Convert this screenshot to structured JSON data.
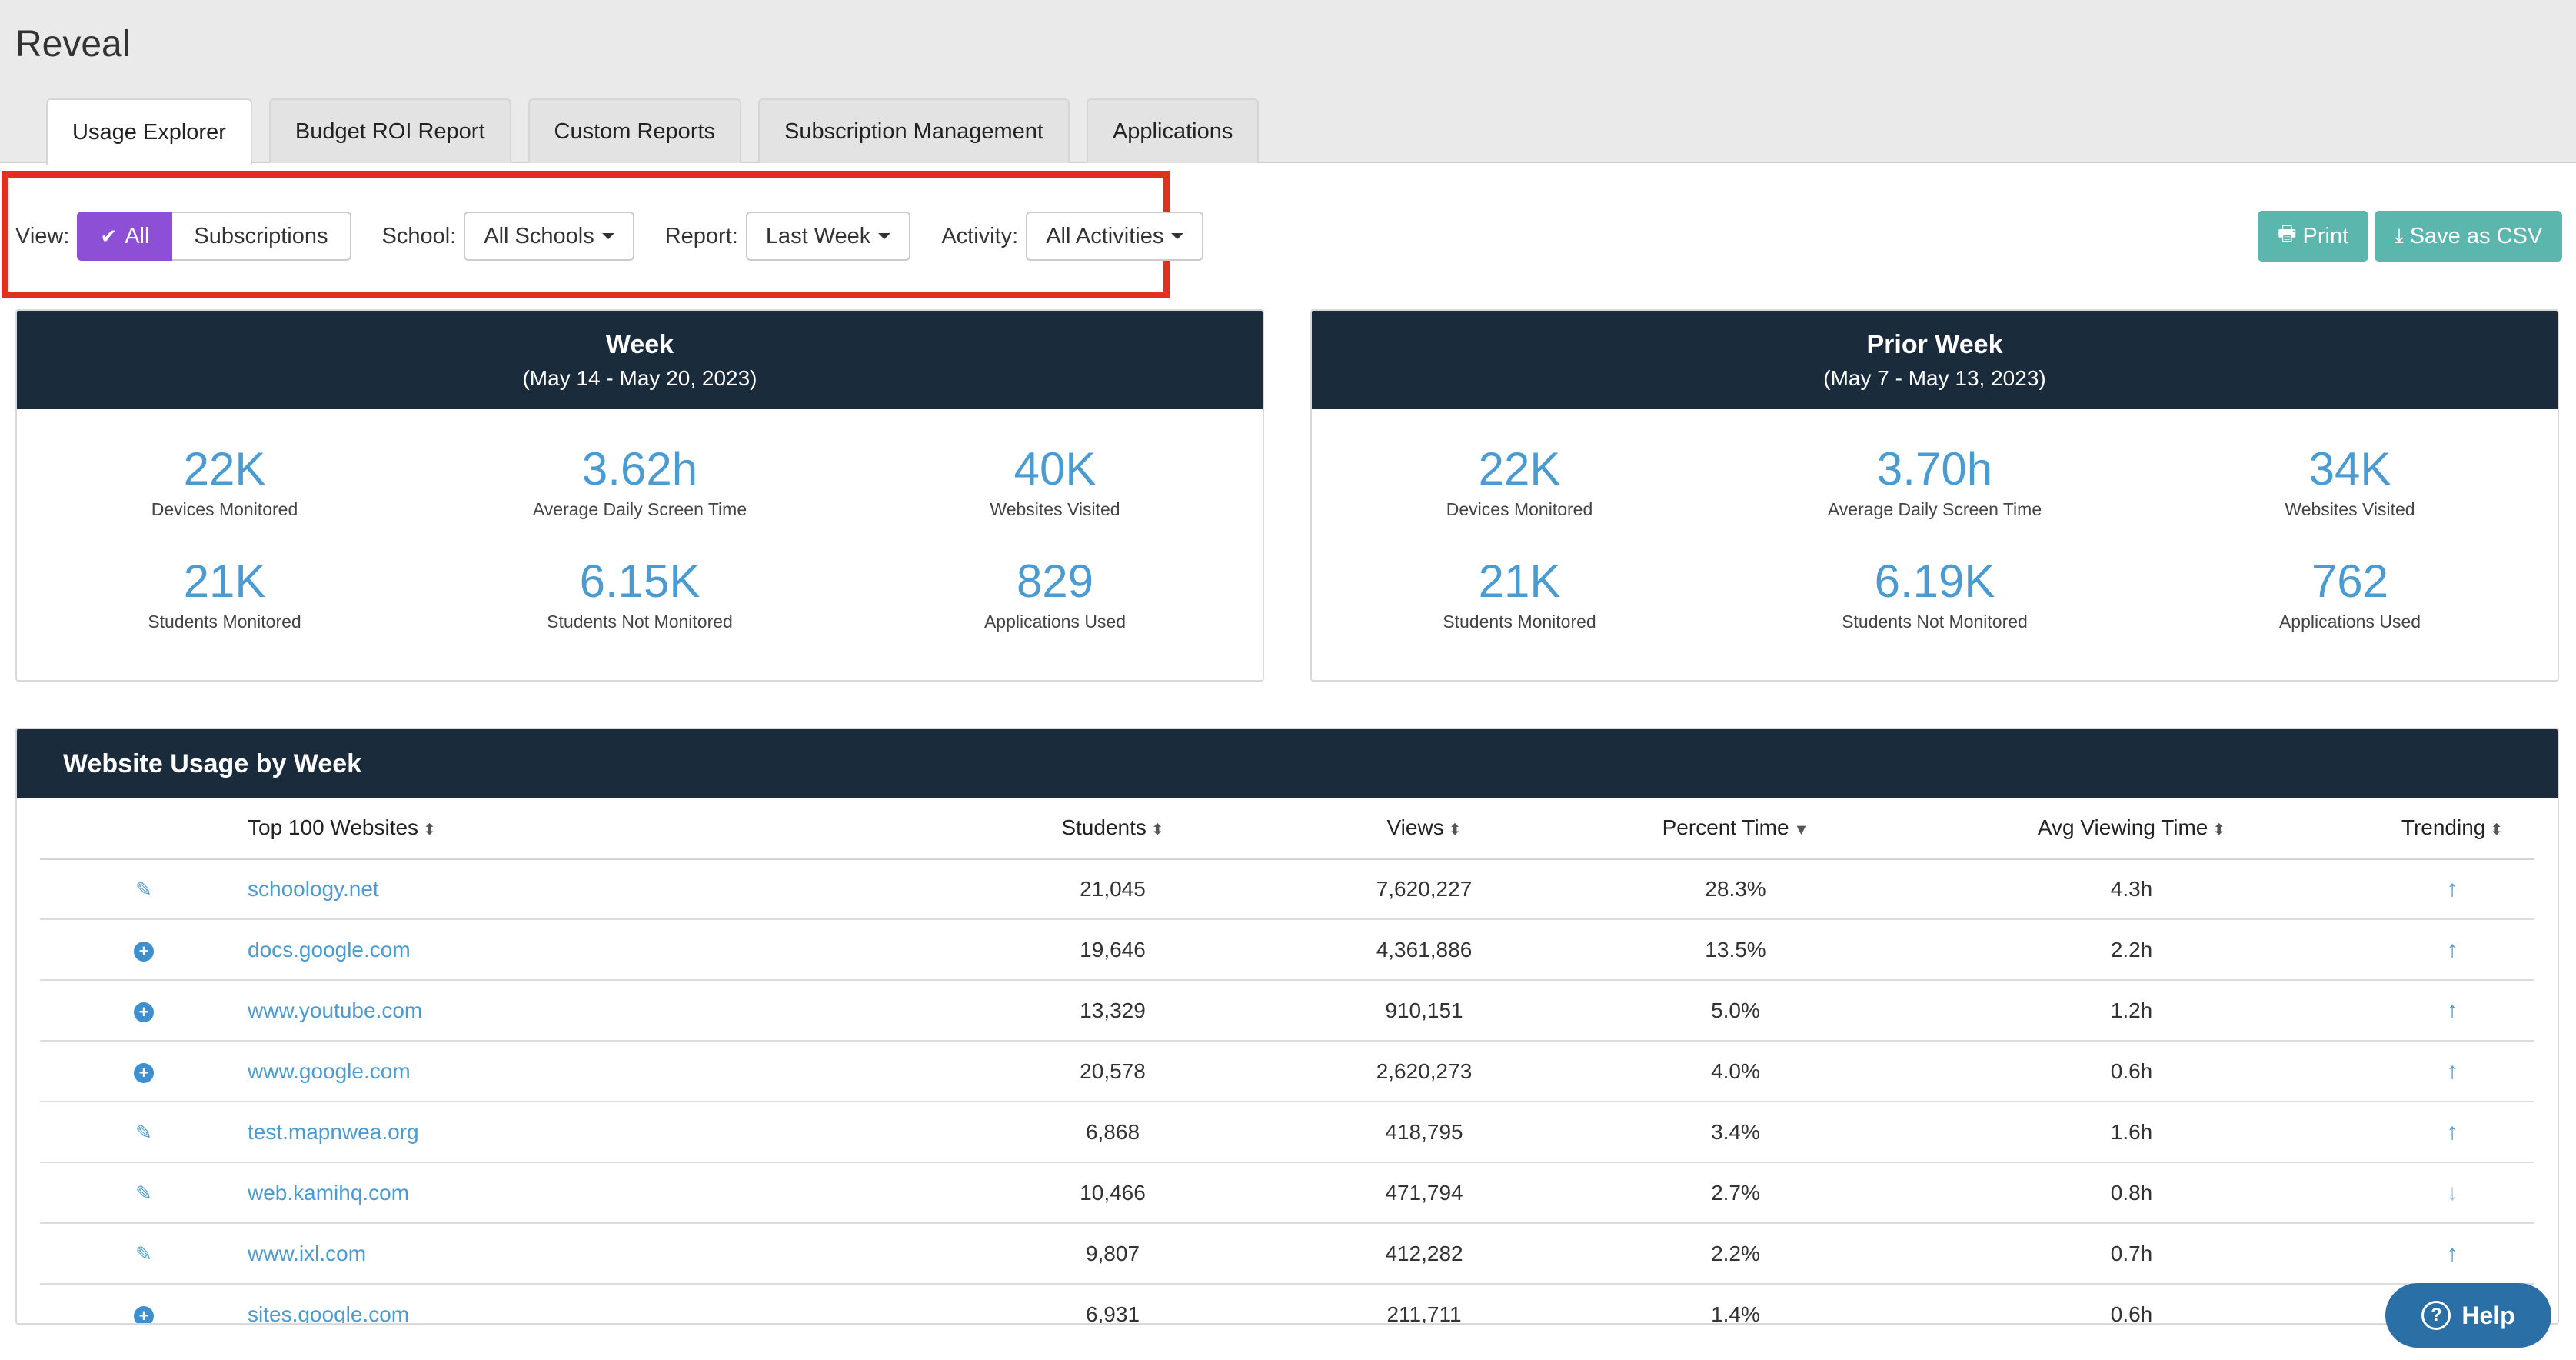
{
  "app": {
    "title": "Reveal"
  },
  "tabs": [
    {
      "label": "Usage Explorer",
      "active": true
    },
    {
      "label": "Budget ROI Report",
      "active": false
    },
    {
      "label": "Custom Reports",
      "active": false
    },
    {
      "label": "Subscription Management",
      "active": false
    },
    {
      "label": "Applications",
      "active": false
    }
  ],
  "filters": {
    "view_label": "View:",
    "view_options": [
      "All",
      "Subscriptions"
    ],
    "view_selected": "All",
    "school_label": "School:",
    "school_value": "All Schools",
    "report_label": "Report:",
    "report_value": "Last Week",
    "activity_label": "Activity:",
    "activity_value": "All Activities"
  },
  "actions": {
    "print": "Print",
    "csv": "Save as CSV"
  },
  "week": {
    "title": "Week",
    "range": "(May 14 - May 20, 2023)",
    "stats": [
      {
        "value": "22K",
        "label": "Devices Monitored"
      },
      {
        "value": "3.62h",
        "label": "Average Daily Screen Time"
      },
      {
        "value": "40K",
        "label": "Websites Visited"
      },
      {
        "value": "21K",
        "label": "Students Monitored"
      },
      {
        "value": "6.15K",
        "label": "Students Not Monitored"
      },
      {
        "value": "829",
        "label": "Applications Used"
      }
    ]
  },
  "prior": {
    "title": "Prior Week",
    "range": "(May 7 - May 13, 2023)",
    "stats": [
      {
        "value": "22K",
        "label": "Devices Monitored"
      },
      {
        "value": "3.70h",
        "label": "Average Daily Screen Time"
      },
      {
        "value": "34K",
        "label": "Websites Visited"
      },
      {
        "value": "21K",
        "label": "Students Monitored"
      },
      {
        "value": "6.19K",
        "label": "Students Not Monitored"
      },
      {
        "value": "762",
        "label": "Applications Used"
      }
    ]
  },
  "usage": {
    "title": "Website Usage by Week",
    "columns": [
      "Top 100 Websites",
      "Students",
      "Views",
      "Percent Time",
      "Avg Viewing Time",
      "Trending"
    ],
    "rows": [
      {
        "icon": "edit-icon",
        "site": "schoology.net",
        "students": "21,045",
        "views": "7,620,227",
        "pct": "28.3%",
        "avg": "4.3h",
        "trend": "up"
      },
      {
        "icon": "plus-circle-icon",
        "site": "docs.google.com",
        "students": "19,646",
        "views": "4,361,886",
        "pct": "13.5%",
        "avg": "2.2h",
        "trend": "up"
      },
      {
        "icon": "plus-circle-icon",
        "site": "www.youtube.com",
        "students": "13,329",
        "views": "910,151",
        "pct": "5.0%",
        "avg": "1.2h",
        "trend": "up"
      },
      {
        "icon": "plus-circle-icon",
        "site": "www.google.com",
        "students": "20,578",
        "views": "2,620,273",
        "pct": "4.0%",
        "avg": "0.6h",
        "trend": "up"
      },
      {
        "icon": "edit-icon",
        "site": "test.mapnwea.org",
        "students": "6,868",
        "views": "418,795",
        "pct": "3.4%",
        "avg": "1.6h",
        "trend": "up"
      },
      {
        "icon": "edit-icon",
        "site": "web.kamihq.com",
        "students": "10,466",
        "views": "471,794",
        "pct": "2.7%",
        "avg": "0.8h",
        "trend": "down"
      },
      {
        "icon": "edit-icon",
        "site": "www.ixl.com",
        "students": "9,807",
        "views": "412,282",
        "pct": "2.2%",
        "avg": "0.7h",
        "trend": "up"
      },
      {
        "icon": "plus-circle-icon",
        "site": "sites.google.com",
        "students": "6,931",
        "views": "211,711",
        "pct": "1.4%",
        "avg": "0.6h",
        "trend": "up"
      }
    ]
  },
  "help": {
    "label": "Help"
  },
  "colors": {
    "header_dark": "#1a2b3c",
    "accent_purple": "#8d4fd6",
    "accent_teal": "#5bb6ae",
    "stat_blue": "#4a9bd2",
    "highlight_red": "#e2301f"
  }
}
